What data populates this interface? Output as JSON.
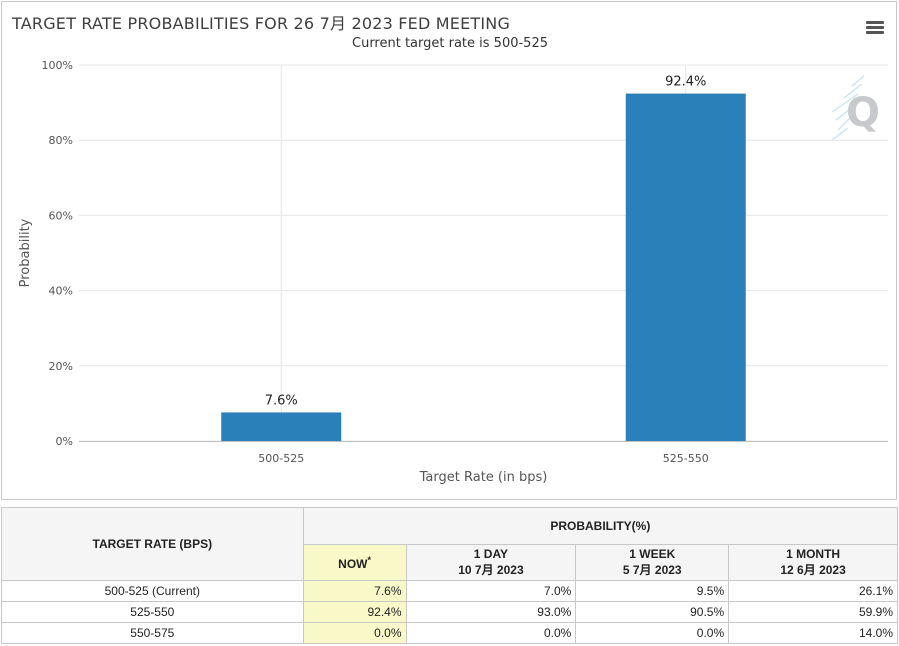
{
  "chart": {
    "title": "TARGET RATE PROBABILITIES FOR 26 7月 2023 FED MEETING",
    "subtitle": "Current target rate is 500-525",
    "menu_icon": "hamburger-menu-icon",
    "watermark_icon": "q-logo-icon",
    "bar_color": "#2a80b9"
  },
  "chart_data": {
    "type": "bar",
    "categories": [
      "500-525",
      "525-550"
    ],
    "values": [
      7.6,
      92.4
    ],
    "data_labels": [
      "7.6%",
      "92.4%"
    ],
    "xlabel": "Target Rate (in bps)",
    "ylabel": "Probability",
    "ylim": [
      0,
      100
    ],
    "yticks": [
      "0%",
      "20%",
      "40%",
      "60%",
      "80%",
      "100%"
    ],
    "grid": true
  },
  "table": {
    "row_header": "TARGET RATE (BPS)",
    "group_header": "PROBABILITY(%)",
    "columns": [
      {
        "line1": "NOW",
        "line2": "",
        "sup": "*"
      },
      {
        "line1": "1 DAY",
        "line2": "10 7月 2023"
      },
      {
        "line1": "1 WEEK",
        "line2": "5 7月 2023"
      },
      {
        "line1": "1 MONTH",
        "line2": "12 6月 2023"
      }
    ],
    "rows": [
      {
        "rate": "500-525 (Current)",
        "values": [
          "7.6%",
          "7.0%",
          "9.5%",
          "26.1%"
        ]
      },
      {
        "rate": "525-550",
        "values": [
          "92.4%",
          "93.0%",
          "90.5%",
          "59.9%"
        ]
      },
      {
        "rate": "550-575",
        "values": [
          "0.0%",
          "0.0%",
          "0.0%",
          "14.0%"
        ]
      }
    ]
  }
}
